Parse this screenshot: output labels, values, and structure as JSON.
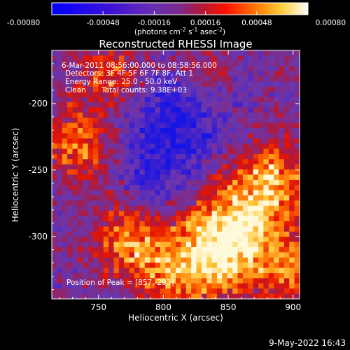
{
  "chart_data": {
    "type": "heatmap",
    "title": "Reconstructed RHESSI Image",
    "xlabel": "Heliocentric X (arcsec)",
    "ylabel": "Heliocentric Y (arcsec)",
    "xlim": [
      714,
      905
    ],
    "ylim": [
      -347,
      -160
    ],
    "x_ticks": [
      750,
      800,
      850,
      900
    ],
    "y_ticks": [
      -200,
      -250,
      -300
    ],
    "colorbar": {
      "range": [
        -0.0008,
        0.0008
      ],
      "tick_labels": [
        "-0.00080",
        "-0.00048",
        "-0.00016",
        "0.00016",
        "0.00048",
        "0.00080"
      ],
      "label_main": "(photons cm",
      "label_exp1": "-2",
      "label_mid": " s",
      "label_exp2": "-1",
      "label_mid2": " asec",
      "label_exp3": "-2",
      "label_end": ")"
    },
    "annotations": {
      "time_range": "6-Mar-2011 08:56:00.000 to 08:58:56.000",
      "detectors": "Detectors: 3F 4F 5F 6F 7F 8F, Att 1",
      "energy": "Energy Range: 25.0 - 50.0 keV",
      "clean": "Clean",
      "total_counts": "Total counts: 9.38E+03",
      "peak_position": "Position of Peak = [857,-293]"
    },
    "peak": [
      857,
      -293
    ],
    "grid": false
  },
  "footer": {
    "date": "9-May-2022 16:43"
  },
  "colors": {
    "background": "#000000",
    "foreground": "#ffffff"
  }
}
